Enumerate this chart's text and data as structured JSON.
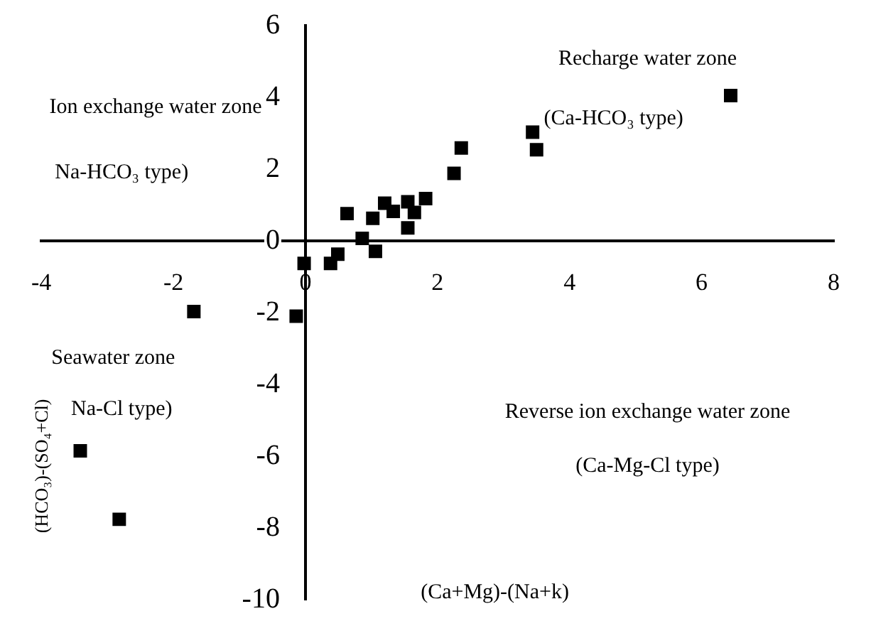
{
  "chart_data": {
    "type": "scatter",
    "xlabel": "(Ca+Mg)-(Na+k)",
    "ylabel": "(HCO₃)-(SO₄+Cl)",
    "annotations": [
      "Recharge water zone",
      "(Ca-HCO₃ type)",
      "Ion exchange water zone",
      "Na-HCO₃ type)",
      "Seawater zone",
      "Na-Cl type)",
      "Reverse ion exchange water zone",
      "(Ca-Mg-Cl type)"
    ],
    "series": [
      {
        "color": "#000000",
        "x": [
          6.44,
          3.44,
          3.5,
          2.36,
          2.25,
          1.82,
          1.65,
          1.55,
          1.55,
          1.33,
          1.2,
          1.02,
          0.63,
          0.86,
          1.06,
          0.49,
          0.38,
          -0.02,
          -0.14,
          -1.69,
          -3.41,
          -2.82
        ],
        "values": [
          4.05,
          3.03,
          2.54,
          2.59,
          1.88,
          1.18,
          0.79,
          1.09,
          0.36,
          0.82,
          1.05,
          0.63,
          0.76,
          0.07,
          -0.29,
          -0.37,
          -0.63,
          -0.63,
          -2.1,
          -1.97,
          -5.85,
          -7.76
        ]
      }
    ],
    "xlim": [
      -4,
      8
    ],
    "xticks": [
      -4,
      -2,
      0,
      2,
      4,
      6,
      8
    ],
    "ylim": [
      -10,
      6
    ],
    "yticks": [
      -10,
      -8,
      -6,
      -4,
      -2,
      0,
      2,
      4,
      6
    ],
    "marker": "square",
    "grid": false,
    "legend": false
  }
}
